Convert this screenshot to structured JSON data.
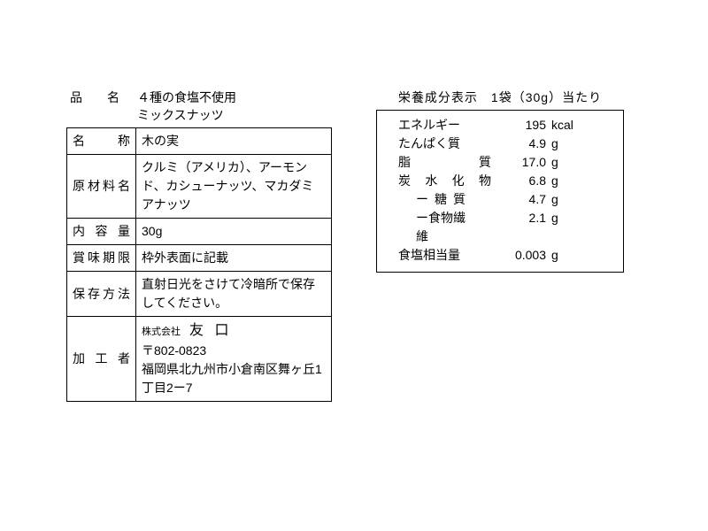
{
  "productNameLabel": "品　　名",
  "productNameValue1": "４種の食塩不使用",
  "productNameValue2": "ミックスナッツ",
  "specs": {
    "category": {
      "label": "名　　称",
      "value": "木の実"
    },
    "ingredients": {
      "label": "原材料名",
      "value": "クルミ（アメリカ）、アーモンド、カシューナッツ、マカダミアナッツ"
    },
    "netWeight": {
      "label": "内 容 量",
      "value": "30g"
    },
    "bestBefore": {
      "label": "賞味期限",
      "value": "枠外表面に記載"
    },
    "storage": {
      "label": "保存方法",
      "value": "直射日光をさけて冷暗所で保存してください。"
    },
    "processor": {
      "label": "加 工 者",
      "companyType": "株式会社",
      "companyName": "友 口",
      "postal": "〒802-0823",
      "address": "福岡県北九州市小倉南区舞ヶ丘1丁目2ー7"
    }
  },
  "nutrition": {
    "title": "栄養成分表示　1袋（30g）当たり",
    "rows": [
      {
        "label": "エネルギー",
        "value": "195",
        "unit": "kcal",
        "spread": false,
        "indent": false
      },
      {
        "label": "たんぱく質",
        "value": "4.9",
        "unit": "g",
        "spread": false,
        "indent": false
      },
      {
        "label": "脂質",
        "value": "17.0",
        "unit": "g",
        "spread": true,
        "indent": false
      },
      {
        "label": "炭水化物",
        "value": "6.8",
        "unit": "g",
        "spread": true,
        "indent": false
      },
      {
        "label": "ー糖質",
        "value": "4.7",
        "unit": "g",
        "spread": false,
        "indent": true
      },
      {
        "label": "ー食物繊維",
        "value": "2.1",
        "unit": "g",
        "spread": false,
        "indent": true
      },
      {
        "label": "食塩相当量",
        "value": "0.003",
        "unit": "g",
        "spread": false,
        "indent": false
      }
    ]
  }
}
